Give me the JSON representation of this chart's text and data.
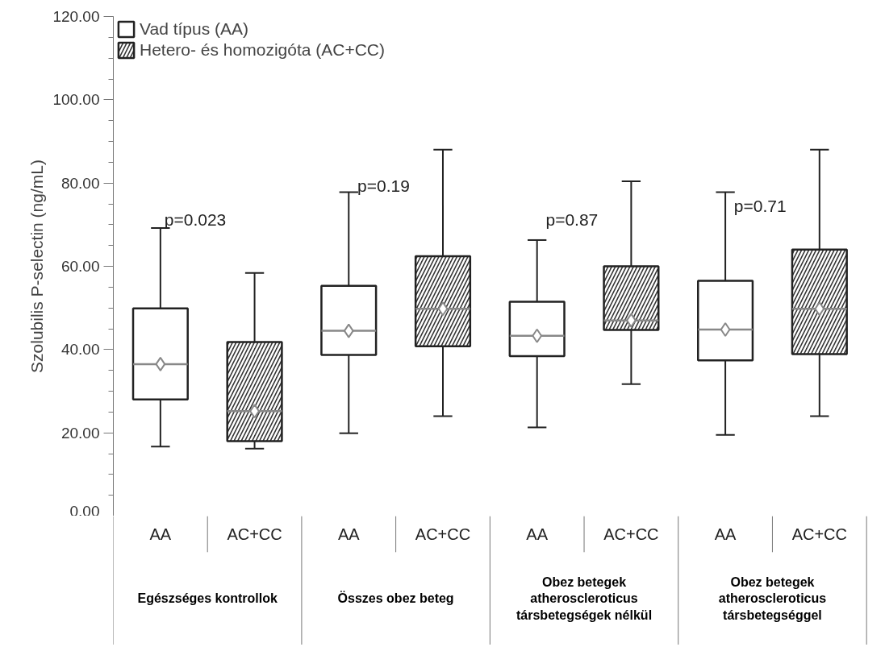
{
  "chart_data": {
    "type": "box",
    "ylabel": "Szolubilis P-selectin (ng/mL)",
    "categories": [
      "AA",
      "AC+CC",
      "AA",
      "AC+CC",
      "AA",
      "AC+CC",
      "AA",
      "AC+CC"
    ],
    "series": [
      {
        "name": "Vad típus (AA)",
        "color": "#ffffff",
        "boxes": [
          {
            "low": 16.7,
            "q1": 28.0,
            "median": 36.5,
            "q3": 49.9,
            "high": 69.2,
            "mean": 36.5
          },
          null,
          {
            "low": 19.9,
            "q1": 38.7,
            "median": 44.5,
            "q3": 55.3,
            "high": 77.8,
            "mean": 44.5
          },
          null,
          {
            "low": 21.3,
            "q1": 38.4,
            "median": 43.3,
            "q3": 51.5,
            "high": 66.3,
            "mean": 43.3
          },
          null,
          {
            "low": 19.5,
            "q1": 37.4,
            "median": 44.8,
            "q3": 56.5,
            "high": 77.8,
            "mean": 44.8
          },
          null
        ]
      },
      {
        "name": "Hetero- és homozigóta (AC+CC)",
        "color": "#333333",
        "boxes": [
          null,
          {
            "low": 16.2,
            "q1": 18.0,
            "median": 25.2,
            "q3": 41.8,
            "high": 58.4,
            "mean": 25.2
          },
          null,
          {
            "low": 24.0,
            "q1": 40.8,
            "median": 49.8,
            "q3": 62.4,
            "high": 88.0,
            "mean": 49.8
          },
          null,
          {
            "low": 31.7,
            "q1": 44.7,
            "median": 47.0,
            "q3": 60.0,
            "high": 80.4,
            "mean": 47.0
          },
          null,
          {
            "low": 24.0,
            "q1": 38.9,
            "median": 49.8,
            "q3": 64.0,
            "high": 88.0,
            "mean": 49.8
          }
        ]
      }
    ],
    "annotations": [
      "p=0.023",
      "p=0.19",
      "p=0.87",
      "p=0.71",
      "Egészséges kontrollok",
      "Összes obez beteg",
      "Obez betegek\natheroscleroticus\ntársbetegségek nélkül",
      "Obez betegek\natheroscleroticus\ntársbetegséggel"
    ],
    "ylim": [
      0,
      120
    ],
    "yticks": [
      {
        "value": 0,
        "label": "0.00"
      },
      {
        "value": 20,
        "label": "20.00"
      },
      {
        "value": 40,
        "label": "40.00"
      },
      {
        "value": 60,
        "label": "60.00"
      },
      {
        "value": 80,
        "label": "80.00"
      },
      {
        "value": 100,
        "label": "100.00"
      },
      {
        "value": 120,
        "label": "120.00"
      }
    ],
    "legend": "top left",
    "grid": false
  }
}
